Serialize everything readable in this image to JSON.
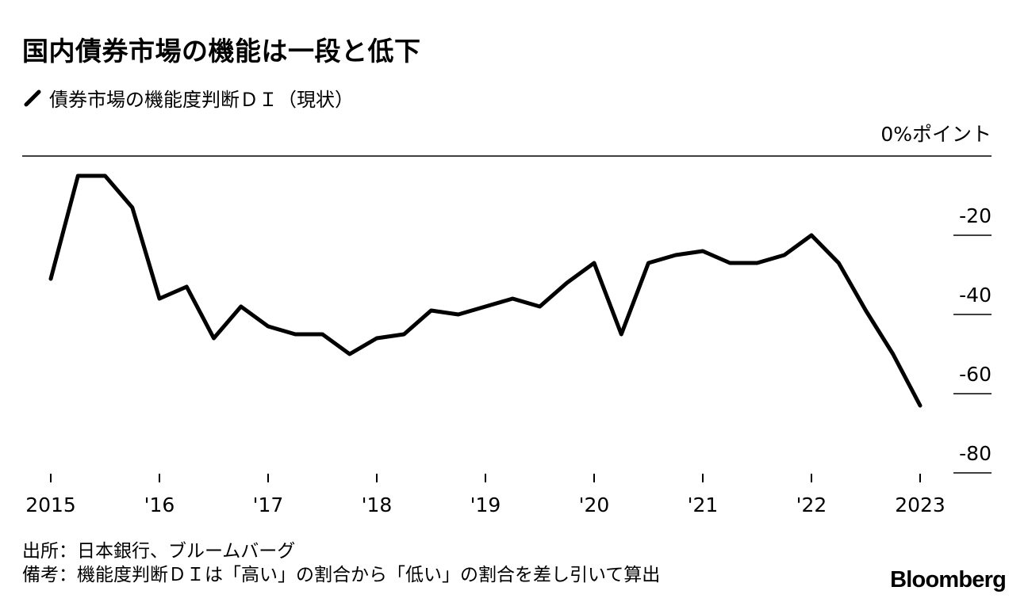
{
  "title": "国内債券市場の機能は一段と低下",
  "legend_label": "債券市場の機能度判断ＤＩ（現状）",
  "unit_label": "0%ポイント",
  "source": "出所：日本銀行、ブルームバーグ",
  "note": "備考：機能度判断ＤＩは「高い」の割合から「低い」の割合を差し引いて算出",
  "brand": "Bloomberg",
  "chart_data": {
    "type": "line",
    "series": [
      {
        "x": [
          "2015-02",
          "2015-05",
          "2015-08",
          "2015-11",
          "2016-02",
          "2016-05",
          "2016-08",
          "2016-11",
          "2017-02",
          "2017-05",
          "2017-08",
          "2017-11",
          "2018-02",
          "2018-05",
          "2018-08",
          "2018-11",
          "2019-02",
          "2019-05",
          "2019-08",
          "2019-11",
          "2020-02",
          "2020-05",
          "2020-08",
          "2020-11",
          "2021-02",
          "2021-05",
          "2021-08",
          "2021-11",
          "2022-02",
          "2022-05",
          "2022-08",
          "2022-11",
          "2023-02"
        ],
        "values": [
          -31,
          -5,
          -5,
          -13,
          -36,
          -33,
          -46,
          -38,
          -43,
          -45,
          -45,
          -50,
          -46,
          -45,
          -39,
          -40,
          -38,
          -36,
          -38,
          -32,
          -27,
          -45,
          -27,
          -25,
          -24,
          -27,
          -27,
          -25,
          -20,
          -27,
          -39,
          -50,
          -63
        ]
      }
    ],
    "y_ticks": [
      "0%ポイント",
      "-20",
      "-40",
      "-60",
      "-80"
    ],
    "y_tick_values": [
      0,
      -20,
      -40,
      -60,
      -80
    ],
    "ylim": [
      -81,
      0
    ],
    "x_tick_labels": [
      "2015",
      "'16",
      "'17",
      "'18",
      "'19",
      "'20",
      "'21",
      "'22",
      "2023"
    ],
    "x_tick_dates": [
      "2015-02",
      "2016-02",
      "2017-02",
      "2018-02",
      "2019-02",
      "2020-02",
      "2021-02",
      "2022-02",
      "2023-02"
    ],
    "line_color": "#000000",
    "grid": false
  }
}
